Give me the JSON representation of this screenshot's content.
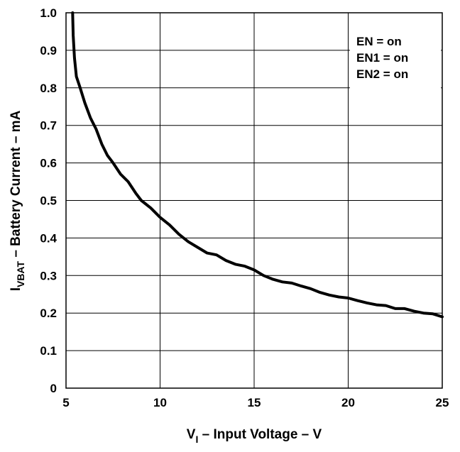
{
  "chart_data": {
    "type": "line",
    "xlabel": {
      "main": "V",
      "sub": "I",
      "rest": " – Input Voltage  –  V"
    },
    "ylabel": {
      "main": "I",
      "sub": "VBAT",
      "rest": " – Battery Current  –  mA"
    },
    "xlim": [
      5,
      25
    ],
    "ylim": [
      0,
      1.0
    ],
    "xticks": [
      5,
      10,
      15,
      20,
      25
    ],
    "yticks": [
      0,
      0.1,
      0.2,
      0.3,
      0.4,
      0.5,
      0.6,
      0.7,
      0.8,
      0.9,
      1.0
    ],
    "ytick_labels": [
      "0",
      "0.1",
      "0.2",
      "0.3",
      "0.4",
      "0.5",
      "0.6",
      "0.7",
      "0.8",
      "0.9",
      "1.0"
    ],
    "grid": true,
    "legend_placement": "top-right",
    "legend": [
      "EN = on",
      "EN1 = on",
      "EN2 = on"
    ],
    "series": [
      {
        "x": [
          5.35,
          5.38,
          5.45,
          5.55,
          5.75,
          6.0,
          6.3,
          6.6,
          6.9,
          7.2,
          7.5,
          7.9,
          8.3,
          8.7,
          9.0,
          9.5,
          10.0,
          10.5,
          11.0,
          11.5,
          12.0,
          12.5,
          13.0,
          13.5,
          14.0,
          14.5,
          15.0,
          15.5,
          16.0,
          16.5,
          17.0,
          17.5,
          18.0,
          18.5,
          19.0,
          19.5,
          20.0,
          20.5,
          21.0,
          21.5,
          22.0,
          22.5,
          23.0,
          23.5,
          24.0,
          24.5,
          25.0
        ],
        "y": [
          1.0,
          0.94,
          0.88,
          0.83,
          0.8,
          0.76,
          0.72,
          0.69,
          0.65,
          0.62,
          0.6,
          0.57,
          0.55,
          0.52,
          0.5,
          0.48,
          0.455,
          0.435,
          0.41,
          0.39,
          0.375,
          0.36,
          0.355,
          0.34,
          0.33,
          0.325,
          0.315,
          0.3,
          0.29,
          0.283,
          0.28,
          0.272,
          0.265,
          0.255,
          0.248,
          0.243,
          0.24,
          0.233,
          0.227,
          0.222,
          0.22,
          0.212,
          0.212,
          0.205,
          0.2,
          0.198,
          0.19
        ]
      }
    ]
  }
}
